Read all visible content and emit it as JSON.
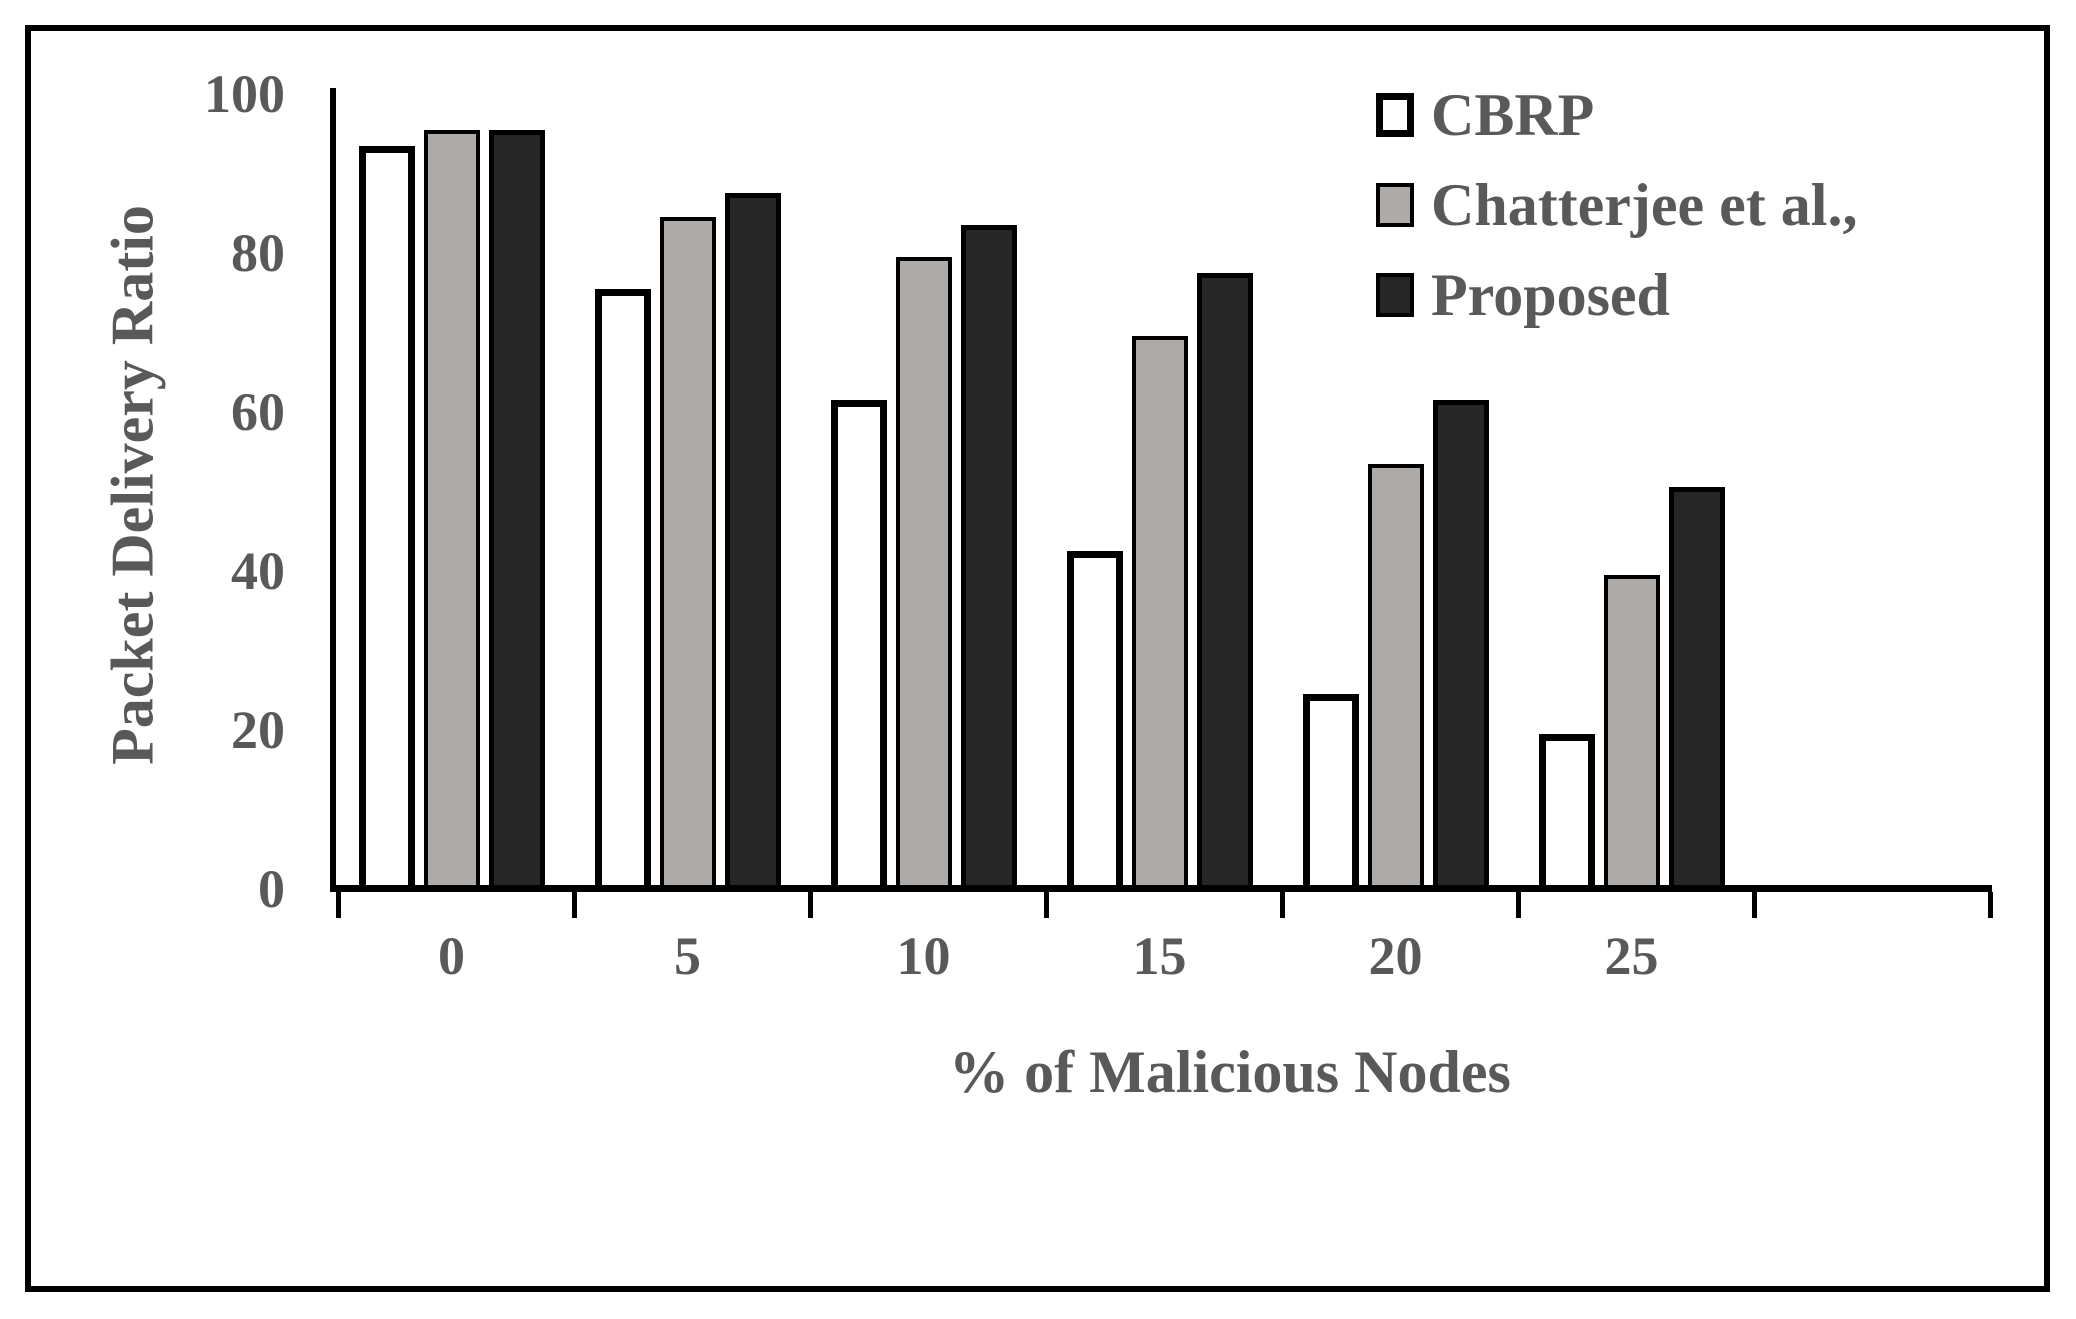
{
  "chart_data": {
    "type": "bar",
    "title": "",
    "xlabel": "% of Malicious Nodes",
    "ylabel": "Packet Delivery Ratio",
    "categories": [
      "0",
      "5",
      "10",
      "15",
      "20",
      "25"
    ],
    "series": [
      {
        "name": "CBRP",
        "fill": "#ffffff",
        "border": "#000000",
        "values": [
          93,
          75,
          61,
          42,
          24,
          19
        ]
      },
      {
        "name": "Chatterjee et al.,",
        "fill": "#aeaaa8",
        "border": "#000000",
        "values": [
          95,
          84,
          79,
          69,
          53,
          39
        ]
      },
      {
        "name": "Proposed",
        "fill": "#262626",
        "border": "#000000",
        "values": [
          95,
          87,
          83,
          77,
          61,
          50
        ]
      }
    ],
    "ylim": [
      0,
      100
    ],
    "yticks": [
      0,
      20,
      40,
      60,
      80,
      100
    ],
    "grid": false,
    "legend_position": "top-right",
    "text_color": "#595959",
    "axis_color": "#000000",
    "background": "#ffffff"
  }
}
